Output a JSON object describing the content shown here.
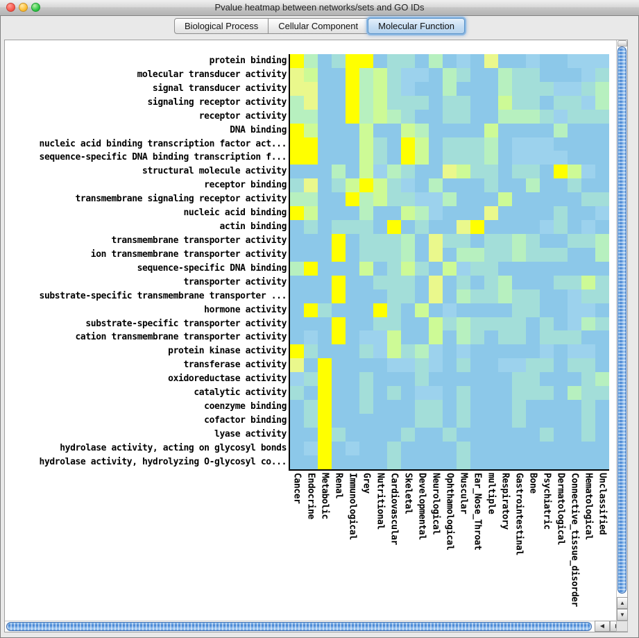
{
  "window": {
    "title": "Pvalue heatmap between networks/sets and GO IDs"
  },
  "tabs": [
    {
      "label": "Biological Process",
      "selected": false
    },
    {
      "label": "Cellular Component",
      "selected": false
    },
    {
      "label": "Molecular Function",
      "selected": true
    }
  ],
  "scrollbar_icons": {
    "up": "▲",
    "down": "▼",
    "left": "◀",
    "right": "▶"
  },
  "chart_data": {
    "type": "heatmap",
    "title": "Pvalue heatmap between networks/sets and GO IDs",
    "legend_position": "none",
    "color_scale": {
      "low_pvalue_color": "#FFFF00",
      "high_pvalue_color": "#8CC8E9",
      "note": "yellow = strong enrichment, blue = weak"
    },
    "rows": [
      "protein binding",
      "molecular transducer activity",
      "signal transducer activity",
      "signaling receptor activity",
      "receptor activity",
      "DNA binding",
      "nucleic acid binding transcription factor act...",
      "sequence-specific DNA binding transcription f...",
      "structural molecule activity",
      "receptor binding",
      "transmembrane signaling receptor activity",
      "nucleic acid binding",
      "actin binding",
      "transmembrane transporter activity",
      "ion transmembrane transporter activity",
      "sequence-specific DNA binding",
      "transporter activity",
      "substrate-specific transmembrane transporter ...",
      "hormone activity",
      "substrate-specific transporter activity",
      "cation transmembrane transporter activity",
      "protein kinase activity",
      "transferase activity",
      "oxidoreductase activity",
      "catalytic activity",
      "coenzyme binding",
      "cofactor binding",
      "lyase activity",
      "hydrolase activity, acting on glycosyl bonds",
      "hydrolase activity, hydrolyzing O-glycosyl co..."
    ],
    "columns": [
      "Cancer",
      "Endocrine",
      "Metabolic",
      "Renal",
      "Immunological",
      "Grey",
      "Nutritional",
      "Cardiovascular",
      "Skeletal",
      "Developmental",
      "Neurological",
      "Ophthamological",
      "Muscular",
      "Ear_Nose_Throat",
      "multiple",
      "Respiratory",
      "Gastrointestinal",
      "Bone",
      "Psychiatric",
      "Dermatological",
      "Connective_tissue_disorder",
      "Hematological",
      "Unclassified"
    ],
    "palette": {
      "b": "#8CC8E9",
      "B": "#9CD2ED",
      "t": "#A3DED9",
      "m": "#B7F0BF",
      "g": "#CDFA96",
      "y": "#EAF88C",
      "Y": "#FFFF00"
    },
    "grid": [
      "YmbtYYbttbmbBbybbBbbBBB",
      "ygbbYmgtBBbmtbbmttbbbBt",
      "yybbYmgtBbbmbbbmtttBBtm",
      "mybbYmgtttbttbbgttbttBm",
      "mmbbYmgmtbbttbbmmmtBttt",
      "Ygbbbgbbgmbbbbgbbbbmbbb",
      "YYbbbgtbYgbtttmbBBBbbbb",
      "YYbbbgtbYgbtttmbBBBBbbb",
      "bbbmbgBmtbbygttbttbYgBb",
      "tybtgYgtBbmbbbtbbmbbtbb",
      "mmbbYmgttBBmbbbgbbbbbtt",
      "YgbbbmbbgmBbbbybbbbtbbB",
      "btbtttbYbtbbyYbbbbBtbBb",
      "bbbYbtttmbyttbttmtbbttm",
      "bbbYbtttmbybmmttmtttbbm",
      "mYbbbgbtgtbgBttbbbbbbbb",
      "bbbYbbtttbybtbtmbbbttgt",
      "bbbYbbbttbybmttmttbbBtt",
      "bYtbbbYtbgbBbbbbttbbBBb",
      "bbbYbbttbbgtmttttbtbBmt",
      "bBbYbBBgbbgbmtbttbtttbb",
      "YtbbbtBgtmBbBbbbbbBbBBb",
      "ybYbbbbBBtBbtbbBBttbttb",
      "BtYbbtbbbtbbbbbbttbbbtm",
      "tbYbbtbtbBBbtbbbtttbmtt",
      "btYbbtbbbttbtbbbtbbbbtb",
      "btYbbbbbbttbtbbbtbbbbtb",
      "bbYtbbbbtbbtbbbbbbtbbtb",
      "bBYbBbbtbbbbtbbbbbbbbbb",
      "bbYbbbbtbbbbtbbbbbbbbbb"
    ]
  }
}
